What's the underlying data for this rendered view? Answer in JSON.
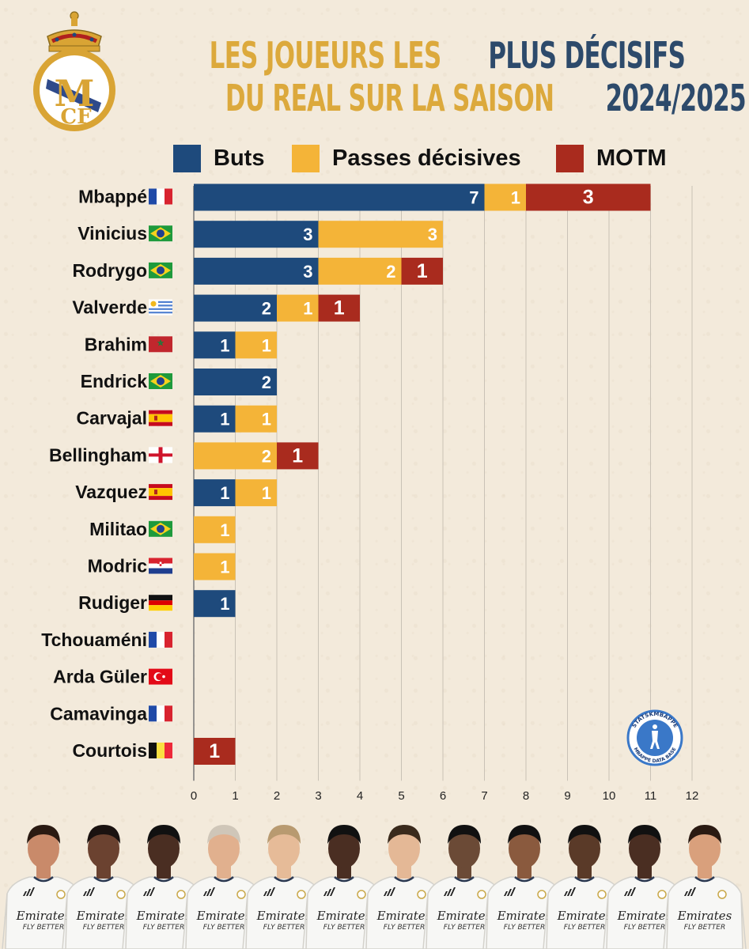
{
  "header": {
    "title_line1_a": "LES JOUEURS LES ",
    "title_line1_b": "PLUS DÉCISIFS",
    "title_line2_a": "DU REAL SUR LA SAISON ",
    "title_line2_b": "2024/2025",
    "colors": {
      "gold": "#dca93c",
      "navy": "#2d4a6b"
    }
  },
  "legend": [
    {
      "label": "Buts",
      "color": "#1e4a7c"
    },
    {
      "label": "Passes décisives",
      "color": "#f4b438"
    },
    {
      "label": "MOTM",
      "color": "#a92b1e"
    }
  ],
  "badge": {
    "top_text": "STATSKMBAPPE",
    "bottom_text": "MBAPPE DATA BASE"
  },
  "jersey": {
    "sponsor": "Emirates",
    "slogan": "FLY BETTER"
  },
  "chart_data": {
    "type": "bar",
    "orientation": "horizontal",
    "stacked": true,
    "categories": [
      "Mbappé",
      "Vinicius",
      "Rodrygo",
      "Valverde",
      "Brahim",
      "Endrick",
      "Carvajal",
      "Bellingham",
      "Vazquez",
      "Militao",
      "Modric",
      "Rudiger",
      "Tchouaméni",
      "Arda Güler",
      "Camavinga",
      "Courtois"
    ],
    "flags": [
      "france-flag",
      "brazil-flag",
      "brazil-flag",
      "uruguay-flag",
      "morocco-flag",
      "brazil-flag",
      "spain-flag",
      "england-flag",
      "spain-flag",
      "brazil-flag",
      "croatia-flag",
      "germany-flag",
      "france-flag",
      "turkey-flag",
      "france-flag",
      "belgium-flag"
    ],
    "series": [
      {
        "name": "Buts",
        "color": "#1e4a7c",
        "values": [
          7,
          3,
          3,
          2,
          1,
          2,
          1,
          0,
          1,
          0,
          0,
          1,
          0,
          0,
          0,
          0
        ]
      },
      {
        "name": "Passes décisives",
        "color": "#f4b438",
        "values": [
          1,
          3,
          2,
          1,
          1,
          0,
          1,
          2,
          1,
          1,
          1,
          0,
          0,
          0,
          0,
          0
        ]
      },
      {
        "name": "MOTM",
        "color": "#a92b1e",
        "values": [
          3,
          0,
          1,
          1,
          0,
          0,
          0,
          1,
          0,
          0,
          0,
          0,
          0,
          0,
          0,
          1
        ]
      }
    ],
    "xlim": [
      0,
      12
    ],
    "xticks": [
      "0",
      "1",
      "2",
      "3",
      "4",
      "5",
      "6",
      "7",
      "8",
      "9",
      "10",
      "11",
      "12"
    ],
    "grid": true,
    "legend_position": "top"
  }
}
